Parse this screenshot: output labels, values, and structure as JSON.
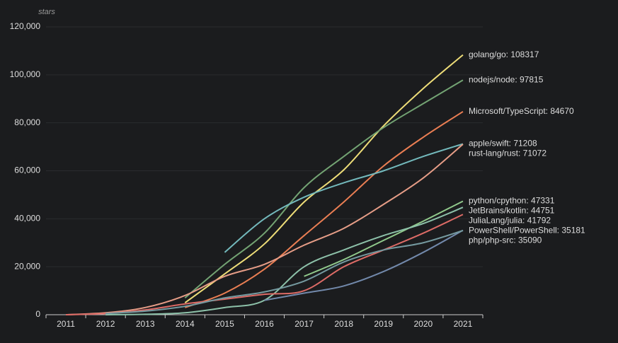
{
  "chart_data": {
    "type": "line",
    "y_axis_label": "stars",
    "categories": [
      "2011",
      "2012",
      "2013",
      "2014",
      "2015",
      "2016",
      "2017",
      "2018",
      "2019",
      "2020",
      "2021"
    ],
    "ylim": [
      0,
      120000
    ],
    "yticks": [
      0,
      {
        "value": 20000,
        "label": "20,000"
      },
      {
        "value": 40000,
        "label": "40,000"
      },
      {
        "value": 60000,
        "label": "60,000"
      },
      {
        "value": 80000,
        "label": "80,000"
      },
      {
        "value": 100000,
        "label": "100,000"
      },
      {
        "value": 120000,
        "label": "120,000"
      }
    ],
    "grid": true,
    "series": [
      {
        "name": "golang/go: 108317",
        "color": "#eedd78",
        "values": [
          null,
          null,
          null,
          5000,
          17000,
          29500,
          47000,
          60400,
          78700,
          94300,
          108317
        ]
      },
      {
        "name": "nodejs/node: 97815",
        "color": "#73a373",
        "values": [
          null,
          null,
          null,
          7000,
          21000,
          34000,
          53000,
          66000,
          78000,
          88000,
          97815
        ]
      },
      {
        "name": "Microsoft/TypeScript: 84670",
        "color": "#ea7e53",
        "values": [
          null,
          null,
          null,
          3000,
          9000,
          19000,
          33000,
          47000,
          62000,
          74000,
          84670
        ]
      },
      {
        "name": "apple/swift: 71208",
        "color": "#73b9bc",
        "values": [
          null,
          null,
          null,
          null,
          26000,
          40000,
          49000,
          55000,
          60000,
          66000,
          71208
        ]
      },
      {
        "name": "rust-lang/rust: 71072",
        "color": "#e69d87",
        "values": [
          0,
          800,
          3000,
          8000,
          16000,
          21000,
          29000,
          36000,
          46000,
          57000,
          71072
        ]
      },
      {
        "name": "python/cpython: 47331",
        "color": "#91ca8c",
        "values": [
          null,
          null,
          null,
          null,
          null,
          null,
          16000,
          23000,
          31000,
          39000,
          47331
        ]
      },
      {
        "name": "JetBrains/kotlin: 44751",
        "color": "#8dc1a9",
        "values": [
          null,
          0,
          200,
          800,
          3000,
          6000,
          20000,
          27000,
          33000,
          38000,
          44751
        ]
      },
      {
        "name": "JuliaLang/julia: 41792",
        "color": "#dd6b66",
        "values": [
          0,
          500,
          2000,
          4500,
          6500,
          8500,
          10000,
          20000,
          27000,
          34000,
          41792
        ]
      },
      {
        "name": "PowerShell/PowerShell: 35181",
        "color": "#7289ab",
        "values": [
          null,
          null,
          null,
          null,
          null,
          6000,
          9000,
          12000,
          18000,
          26000,
          35181
        ]
      },
      {
        "name": "php/php-src: 35090",
        "color": "#759aa0",
        "values": [
          null,
          500,
          1500,
          3500,
          7000,
          9500,
          14000,
          22000,
          27000,
          30000,
          35090
        ]
      }
    ]
  }
}
